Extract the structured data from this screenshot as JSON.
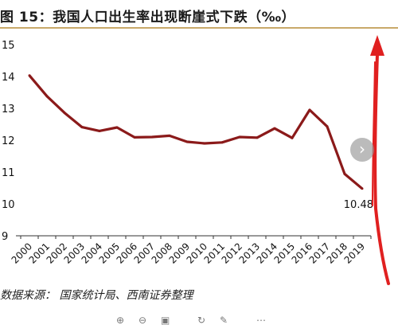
{
  "title": "图 15：我国人口出生率出现断崖式下跌（‰）",
  "source": "数据来源：  国家统计局、西南证券整理",
  "colors": {
    "series": "#8b1a1a",
    "arrow": "#e02020",
    "title_rule": "#c9a96a"
  },
  "icons": {
    "next": "chevron-right-icon",
    "toolbar": [
      "zoom-in-icon",
      "zoom-out-icon",
      "fit-icon",
      "rotate-icon",
      "edit-icon",
      "more-icon"
    ]
  },
  "chart_data": {
    "type": "line",
    "x": [
      "2000",
      "2001",
      "2002",
      "2003",
      "2004",
      "2005",
      "2006",
      "2007",
      "2008",
      "2009",
      "2010",
      "2011",
      "2012",
      "2013",
      "2014",
      "2015",
      "2016",
      "2017",
      "2018",
      "2019"
    ],
    "series": [
      {
        "values": [
          14.03,
          13.38,
          12.86,
          12.41,
          12.29,
          12.4,
          12.09,
          12.1,
          12.14,
          11.95,
          11.9,
          11.93,
          12.1,
          12.08,
          12.37,
          12.07,
          12.95,
          12.43,
          10.94,
          10.48
        ]
      }
    ],
    "data_labels": [
      {
        "x": "2019",
        "text": "10.48"
      }
    ],
    "yticks": [
      "9",
      "10",
      "11",
      "12",
      "13",
      "14",
      "15"
    ],
    "ylim": [
      9,
      15
    ],
    "grid": false,
    "annotation": "upward red arrow drawn at the right edge"
  }
}
